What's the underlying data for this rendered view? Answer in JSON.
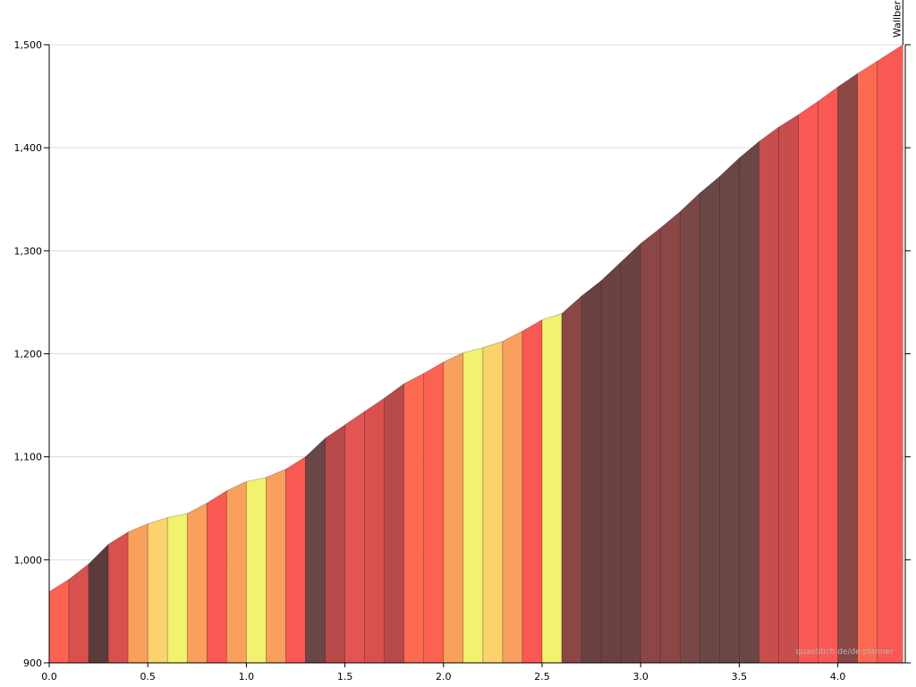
{
  "chart_data": {
    "type": "area",
    "xlim": [
      0,
      4.33
    ],
    "ylim": [
      900,
      1500
    ],
    "grid": true,
    "x_ticks": [
      {
        "value": 0.0,
        "label": "0.0"
      },
      {
        "value": 0.5,
        "label": "0.5"
      },
      {
        "value": 1.0,
        "label": "1.0"
      },
      {
        "value": 1.5,
        "label": "1.5"
      },
      {
        "value": 2.0,
        "label": "2.0"
      },
      {
        "value": 2.5,
        "label": "2.5"
      },
      {
        "value": 3.0,
        "label": "3.0"
      },
      {
        "value": 3.5,
        "label": "3.5"
      },
      {
        "value": 4.0,
        "label": "4.0"
      }
    ],
    "y_ticks": [
      {
        "value": 900,
        "label": "900"
      },
      {
        "value": 1000,
        "label": "1,000"
      },
      {
        "value": 1100,
        "label": "1,100"
      },
      {
        "value": 1200,
        "label": "1,200"
      },
      {
        "value": 1300,
        "label": "1,300"
      },
      {
        "value": 1400,
        "label": "1,400"
      },
      {
        "value": 1500,
        "label": "1,500"
      }
    ],
    "x": [
      0.0,
      0.1,
      0.2,
      0.3,
      0.4,
      0.5,
      0.6,
      0.7,
      0.8,
      0.9,
      1.0,
      1.1,
      1.2,
      1.3,
      1.4,
      1.5,
      1.6,
      1.7,
      1.8,
      1.9,
      2.0,
      2.1,
      2.2,
      2.3,
      2.4,
      2.5,
      2.6,
      2.7,
      2.8,
      2.9,
      3.0,
      3.1,
      3.2,
      3.3,
      3.4,
      3.5,
      3.6,
      3.7,
      3.8,
      3.9,
      4.0,
      4.1,
      4.2,
      4.33
    ],
    "y": [
      969,
      981,
      996,
      1015,
      1027,
      1035,
      1041,
      1045,
      1055,
      1067,
      1076,
      1080,
      1088,
      1100,
      1118,
      1131,
      1144,
      1157,
      1171,
      1181,
      1192,
      1201,
      1206,
      1212,
      1222,
      1233,
      1239,
      1256,
      1271,
      1289,
      1307,
      1322,
      1338,
      1356,
      1372,
      1390,
      1406,
      1420,
      1432,
      1445,
      1459,
      1472,
      1484,
      1500
    ],
    "segment_colors": [
      "#fc6252",
      "#d9514f",
      "#5a3c3c",
      "#d9514f",
      "#f9a05c",
      "#fcd26c",
      "#f3f26e",
      "#f9a05c",
      "#fa5853",
      "#f9a05c",
      "#f3f26e",
      "#f9a05c",
      "#fa5853",
      "#6b4646",
      "#b84949",
      "#e35452",
      "#d9514f",
      "#b84949",
      "#fc6a52",
      "#fc6252",
      "#f9a05c",
      "#f3f26e",
      "#fcd26c",
      "#f9a05c",
      "#fa5853",
      "#f3f26e",
      "#8b4646",
      "#6b4141",
      "#6b4141",
      "#6b4141",
      "#8b4646",
      "#8b4646",
      "#7a4646",
      "#6b4646",
      "#6b4646",
      "#6b4646",
      "#c84e4e",
      "#c84e4e",
      "#fa5853",
      "#fa5853",
      "#8b4646",
      "#fc6a52",
      "#fa5853"
    ],
    "summit_label": "Wallber",
    "watermark": "quaeldich.de/de planner"
  }
}
